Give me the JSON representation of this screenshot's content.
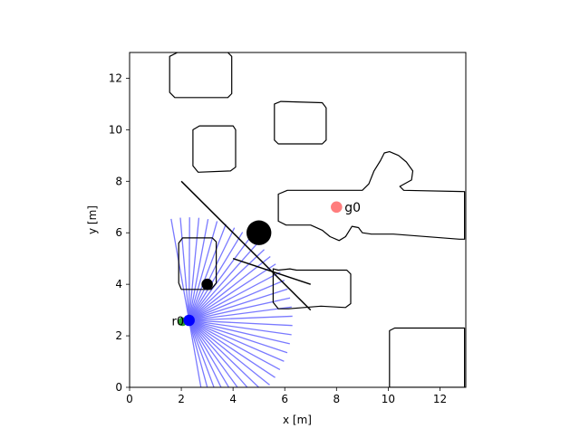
{
  "chart_data": {
    "type": "scatter",
    "title": "",
    "xlabel": "x [m]",
    "ylabel": "y [m]",
    "xlim": [
      0,
      13
    ],
    "ylim": [
      0,
      13
    ],
    "xticks": [
      "0",
      "2",
      "4",
      "6",
      "8",
      "10",
      "12"
    ],
    "yticks": [
      "0",
      "2",
      "4",
      "6",
      "8",
      "10",
      "12"
    ],
    "grid": false,
    "legend": "none",
    "colors": {
      "obstacle": "#000000",
      "ray": "#6a6aff",
      "robot": "#0000ff",
      "robot_start": "#2ca02c",
      "goal": "#ff6666",
      "line": "#000000"
    },
    "obstacles": [
      {
        "name": "obstacle-top-left",
        "points": [
          [
            1.55,
            12.85
          ],
          [
            1.85,
            13.0
          ],
          [
            3.8,
            13.0
          ],
          [
            3.95,
            12.85
          ],
          [
            3.95,
            11.4
          ],
          [
            3.8,
            11.25
          ],
          [
            1.75,
            11.25
          ],
          [
            1.55,
            11.45
          ]
        ]
      },
      {
        "name": "obstacle-top-middle",
        "points": [
          [
            5.6,
            11.0
          ],
          [
            5.85,
            11.1
          ],
          [
            7.45,
            11.05
          ],
          [
            7.6,
            10.85
          ],
          [
            7.6,
            9.6
          ],
          [
            7.45,
            9.45
          ],
          [
            5.75,
            9.45
          ],
          [
            5.6,
            9.6
          ]
        ]
      },
      {
        "name": "obstacle-mid-left",
        "points": [
          [
            2.45,
            10.0
          ],
          [
            2.7,
            10.15
          ],
          [
            4.0,
            10.15
          ],
          [
            4.1,
            10.0
          ],
          [
            4.1,
            8.55
          ],
          [
            3.9,
            8.4
          ],
          [
            2.65,
            8.35
          ],
          [
            2.45,
            8.6
          ]
        ]
      },
      {
        "name": "obstacle-large-right",
        "points": [
          [
            5.75,
            7.5
          ],
          [
            6.1,
            7.65
          ],
          [
            9.0,
            7.65
          ],
          [
            9.25,
            7.9
          ],
          [
            9.45,
            8.4
          ],
          [
            9.7,
            8.8
          ],
          [
            9.85,
            9.1
          ],
          [
            10.05,
            9.15
          ],
          [
            10.4,
            9.0
          ],
          [
            10.7,
            8.75
          ],
          [
            10.95,
            8.4
          ],
          [
            10.9,
            8.05
          ],
          [
            10.45,
            7.8
          ],
          [
            10.6,
            7.65
          ],
          [
            12.95,
            7.6
          ],
          [
            12.95,
            5.75
          ],
          [
            12.75,
            5.75
          ],
          [
            10.2,
            5.95
          ],
          [
            9.35,
            5.95
          ],
          [
            9.0,
            6.0
          ],
          [
            8.85,
            6.2
          ],
          [
            8.6,
            6.25
          ],
          [
            8.35,
            5.85
          ],
          [
            8.1,
            5.7
          ],
          [
            7.75,
            5.85
          ],
          [
            7.45,
            6.1
          ],
          [
            7.0,
            6.3
          ],
          [
            6.05,
            6.3
          ],
          [
            5.75,
            6.45
          ]
        ]
      },
      {
        "name": "obstacle-small-left",
        "points": [
          [
            1.9,
            5.6
          ],
          [
            2.05,
            5.8
          ],
          [
            3.2,
            5.8
          ],
          [
            3.35,
            5.65
          ],
          [
            3.35,
            4.05
          ],
          [
            3.15,
            3.8
          ],
          [
            2.0,
            3.8
          ],
          [
            1.9,
            4.05
          ]
        ]
      },
      {
        "name": "obstacle-center",
        "points": [
          [
            5.55,
            4.6
          ],
          [
            5.75,
            4.55
          ],
          [
            6.2,
            4.6
          ],
          [
            6.45,
            4.55
          ],
          [
            8.4,
            4.55
          ],
          [
            8.55,
            4.4
          ],
          [
            8.55,
            3.25
          ],
          [
            8.35,
            3.1
          ],
          [
            7.4,
            3.15
          ],
          [
            6.15,
            3.05
          ],
          [
            5.75,
            3.05
          ],
          [
            5.55,
            3.3
          ]
        ]
      },
      {
        "name": "obstacle-bottom-right",
        "points": [
          [
            10.05,
            2.2
          ],
          [
            10.25,
            2.3
          ],
          [
            12.95,
            2.3
          ],
          [
            12.95,
            0.0
          ],
          [
            10.05,
            0.0
          ]
        ]
      }
    ],
    "lines": [
      {
        "name": "long-diagonal-line",
        "points": [
          [
            2.0,
            8.0
          ],
          [
            7.0,
            3.0
          ]
        ]
      },
      {
        "name": "short-line",
        "points": [
          [
            4.0,
            5.0
          ],
          [
            7.0,
            4.0
          ]
        ]
      }
    ],
    "markers": [
      {
        "name": "large-obstacle-dot",
        "x": 5.0,
        "y": 6.0,
        "r_m": 0.48,
        "color": "#000000"
      },
      {
        "name": "small-obstacle-dot",
        "x": 3.0,
        "y": 4.0,
        "r_m": 0.22,
        "color": "#000000"
      },
      {
        "name": "goal-marker",
        "x": 8.0,
        "y": 7.0,
        "r_m": 0.22,
        "color": "#ff6666",
        "label": "g0"
      },
      {
        "name": "robot-start-marker",
        "x": 2.05,
        "y": 2.55,
        "r_m": 0.17,
        "color": "#2ca02c",
        "label": "r0"
      },
      {
        "name": "robot-marker",
        "x": 2.3,
        "y": 2.6,
        "r_m": 0.22,
        "color": "#0000ff"
      }
    ],
    "lidar": {
      "origin": [
        2.3,
        2.6
      ],
      "angle_start_deg": -80,
      "angle_end_deg": 100,
      "count": 36,
      "range": 4.0
    }
  }
}
